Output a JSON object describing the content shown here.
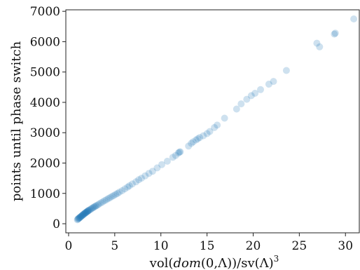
{
  "chart_data": {
    "type": "scatter",
    "title": "",
    "xlabel_parts": {
      "pre": "vol(",
      "italic": "dom",
      "mid": "(0,Λ))/sv(Λ)",
      "sup": "3"
    },
    "ylabel": "points until phase switch",
    "xlim": [
      -0.3,
      31.5
    ],
    "ylim": [
      -300,
      7050
    ],
    "xticks": [
      0,
      5,
      10,
      15,
      20,
      25,
      30
    ],
    "yticks": [
      0,
      1000,
      2000,
      3000,
      4000,
      5000,
      6000,
      7000
    ],
    "grid": false,
    "legend": "none",
    "marker_color": "#1f77b4",
    "marker_alpha": 0.22,
    "points": [
      [
        0.95,
        130
      ],
      [
        1.0,
        150
      ],
      [
        1.05,
        165
      ],
      [
        1.1,
        175
      ],
      [
        1.15,
        190
      ],
      [
        1.2,
        200
      ],
      [
        1.25,
        215
      ],
      [
        1.3,
        225
      ],
      [
        1.35,
        240
      ],
      [
        1.4,
        255
      ],
      [
        1.45,
        265
      ],
      [
        1.5,
        280
      ],
      [
        1.55,
        290
      ],
      [
        1.6,
        305
      ],
      [
        1.65,
        315
      ],
      [
        1.7,
        330
      ],
      [
        1.75,
        340
      ],
      [
        1.8,
        355
      ],
      [
        1.85,
        365
      ],
      [
        1.9,
        375
      ],
      [
        1.95,
        385
      ],
      [
        2.0,
        400
      ],
      [
        2.05,
        410
      ],
      [
        2.1,
        420
      ],
      [
        2.15,
        430
      ],
      [
        2.2,
        445
      ],
      [
        2.3,
        460
      ],
      [
        2.4,
        480
      ],
      [
        2.5,
        500
      ],
      [
        2.6,
        520
      ],
      [
        2.7,
        540
      ],
      [
        2.8,
        560
      ],
      [
        2.9,
        575
      ],
      [
        3.0,
        595
      ],
      [
        3.15,
        620
      ],
      [
        3.3,
        650
      ],
      [
        3.5,
        690
      ],
      [
        3.7,
        720
      ],
      [
        3.9,
        760
      ],
      [
        4.1,
        790
      ],
      [
        4.3,
        830
      ],
      [
        4.5,
        860
      ],
      [
        4.7,
        900
      ],
      [
        4.9,
        930
      ],
      [
        5.1,
        970
      ],
      [
        5.3,
        1000
      ],
      [
        5.5,
        1040
      ],
      [
        5.8,
        1090
      ],
      [
        6.1,
        1150
      ],
      [
        6.4,
        1210
      ],
      [
        6.6,
        1250
      ],
      [
        6.9,
        1310
      ],
      [
        7.3,
        1380
      ],
      [
        7.6,
        1450
      ],
      [
        7.9,
        1500
      ],
      [
        8.3,
        1580
      ],
      [
        8.7,
        1660
      ],
      [
        9.1,
        1730
      ],
      [
        9.6,
        1840
      ],
      [
        10.1,
        1950
      ],
      [
        10.7,
        2060
      ],
      [
        11.3,
        2190
      ],
      [
        11.6,
        2250
      ],
      [
        11.9,
        2330
      ],
      [
        12.0,
        2360
      ],
      [
        12.1,
        2370
      ],
      [
        13.0,
        2560
      ],
      [
        13.3,
        2650
      ],
      [
        13.5,
        2700
      ],
      [
        13.8,
        2760
      ],
      [
        14.0,
        2800
      ],
      [
        14.2,
        2840
      ],
      [
        14.6,
        2900
      ],
      [
        15.0,
        2970
      ],
      [
        15.3,
        3040
      ],
      [
        15.8,
        3170
      ],
      [
        16.1,
        3250
      ],
      [
        16.9,
        3480
      ],
      [
        18.2,
        3780
      ],
      [
        18.7,
        3950
      ],
      [
        19.3,
        4100
      ],
      [
        19.8,
        4220
      ],
      [
        20.2,
        4300
      ],
      [
        20.8,
        4420
      ],
      [
        21.7,
        4600
      ],
      [
        22.2,
        4690
      ],
      [
        23.6,
        5050
      ],
      [
        26.9,
        5950
      ],
      [
        27.2,
        5830
      ],
      [
        28.8,
        6250
      ],
      [
        28.9,
        6280
      ],
      [
        30.9,
        6750
      ]
    ]
  }
}
